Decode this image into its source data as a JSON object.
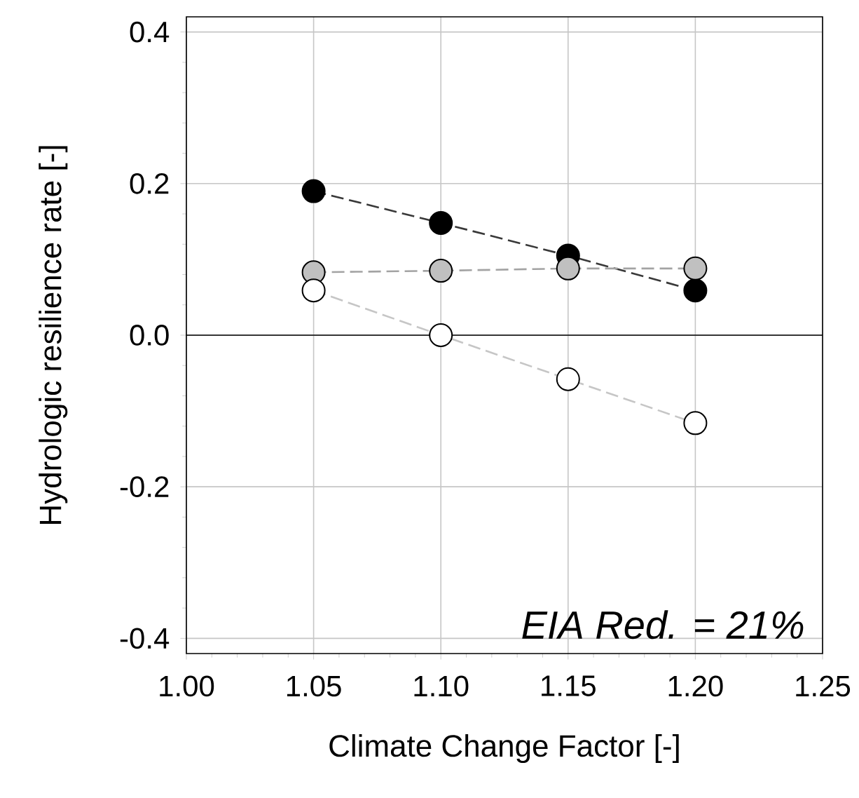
{
  "chart_data": {
    "type": "line",
    "xlabel": "Climate Change Factor [-]",
    "ylabel": "Hydrologic resilience rate [-]",
    "x": [
      1.05,
      1.1,
      1.15,
      1.2
    ],
    "series": [
      {
        "color": "#000000",
        "values": [
          0.19,
          0.148,
          0.105,
          0.059
        ]
      },
      {
        "color": "#c0c0c0",
        "values": [
          0.083,
          0.085,
          0.088,
          0.088
        ]
      },
      {
        "color": "#ffffff",
        "values": [
          0.059,
          0.0,
          -0.058,
          -0.116
        ]
      }
    ],
    "xlim": [
      1.0,
      1.25
    ],
    "ylim": [
      -0.42,
      0.42
    ],
    "xticks": [
      {
        "value": 1.0,
        "label": "1.00"
      },
      {
        "value": 1.05,
        "label": "1.05"
      },
      {
        "value": 1.1,
        "label": "1.10"
      },
      {
        "value": 1.15,
        "label": "1.15"
      },
      {
        "value": 1.2,
        "label": "1.20"
      },
      {
        "value": 1.25,
        "label": "1.25"
      }
    ],
    "yticks": [
      {
        "value": -0.4,
        "label": "-0.4"
      },
      {
        "value": -0.2,
        "label": "-0.2"
      },
      {
        "value": 0.0,
        "label": "0.0"
      },
      {
        "value": 0.2,
        "label": "0.2"
      },
      {
        "value": 0.4,
        "label": "0.4"
      }
    ],
    "ref_lines": [
      {
        "axis": "y",
        "value": 0,
        "color": "#000000"
      }
    ],
    "annotations": [
      "EIA Red. = 21%"
    ],
    "grid": true,
    "marker": "circle",
    "line_style": "dashed"
  }
}
